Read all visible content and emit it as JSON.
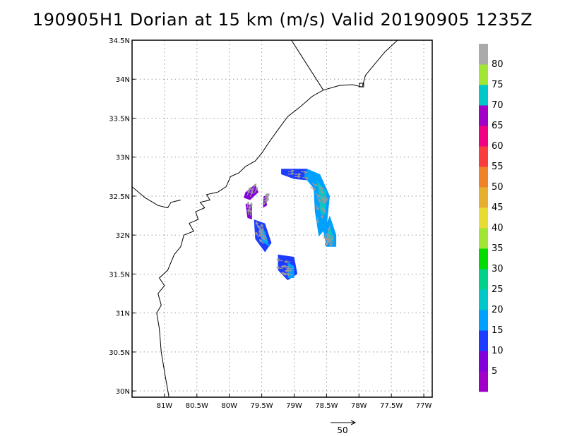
{
  "title": "190905H1 Dorian at 15 km (m/s) Valid 20190905 1235Z",
  "map": {
    "lon_range": [
      -81.5,
      -76.87
    ],
    "lat_range": [
      29.92,
      34.5
    ],
    "lon_ticks": [
      {
        "value": -81.0,
        "label": "81W"
      },
      {
        "value": -80.5,
        "label": "80.5W"
      },
      {
        "value": -80.0,
        "label": "80W"
      },
      {
        "value": -79.5,
        "label": "79.5W"
      },
      {
        "value": -79.0,
        "label": "79W"
      },
      {
        "value": -78.5,
        "label": "78.5W"
      },
      {
        "value": -78.0,
        "label": "78W"
      },
      {
        "value": -77.5,
        "label": "77.5W"
      },
      {
        "value": -77.0,
        "label": "77W"
      }
    ],
    "lat_ticks": [
      {
        "value": 30.0,
        "label": "30N"
      },
      {
        "value": 30.5,
        "label": "30.5N"
      },
      {
        "value": 31.0,
        "label": "31N"
      },
      {
        "value": 31.5,
        "label": "31.5N"
      },
      {
        "value": 32.0,
        "label": "32N"
      },
      {
        "value": 32.5,
        "label": "32.5N"
      },
      {
        "value": 33.0,
        "label": "33N"
      },
      {
        "value": 33.5,
        "label": "33.5N"
      },
      {
        "value": 34.0,
        "label": "34N"
      },
      {
        "value": 34.5,
        "label": "34.5N"
      }
    ],
    "grid": true,
    "coastline": [
      [
        -80.93,
        29.92
      ],
      [
        -80.99,
        30.2
      ],
      [
        -81.05,
        30.5
      ],
      [
        -81.08,
        30.8
      ],
      [
        -81.12,
        31.0
      ],
      [
        -81.05,
        31.1
      ],
      [
        -81.1,
        31.25
      ],
      [
        -81.0,
        31.35
      ],
      [
        -81.08,
        31.45
      ],
      [
        -80.95,
        31.55
      ],
      [
        -80.85,
        31.75
      ],
      [
        -80.75,
        31.85
      ],
      [
        -80.7,
        32.0
      ],
      [
        -80.55,
        32.05
      ],
      [
        -80.62,
        32.15
      ],
      [
        -80.48,
        32.2
      ],
      [
        -80.52,
        32.3
      ],
      [
        -80.38,
        32.35
      ],
      [
        -80.45,
        32.42
      ],
      [
        -80.3,
        32.45
      ],
      [
        -80.35,
        32.52
      ],
      [
        -80.18,
        32.55
      ],
      [
        -80.05,
        32.62
      ],
      [
        -79.98,
        32.75
      ],
      [
        -79.85,
        32.8
      ],
      [
        -79.75,
        32.88
      ],
      [
        -79.6,
        32.95
      ],
      [
        -79.5,
        33.05
      ],
      [
        -79.38,
        33.2
      ],
      [
        -79.25,
        33.35
      ],
      [
        -79.1,
        33.52
      ],
      [
        -78.9,
        33.65
      ],
      [
        -78.72,
        33.78
      ],
      [
        -78.55,
        33.86
      ],
      [
        -78.3,
        33.92
      ],
      [
        -78.1,
        33.93
      ],
      [
        -77.95,
        33.9
      ],
      [
        -77.9,
        34.05
      ],
      [
        -77.75,
        34.2
      ],
      [
        -77.6,
        34.35
      ],
      [
        -77.38,
        34.52
      ]
    ],
    "inland_lines": [
      [
        [
          -79.08,
          34.55
        ],
        [
          -78.55,
          33.86
        ]
      ],
      [
        [
          -81.5,
          32.62
        ],
        [
          -81.3,
          32.48
        ],
        [
          -81.1,
          32.38
        ],
        [
          -80.95,
          32.35
        ],
        [
          -80.9,
          32.42
        ],
        [
          -80.75,
          32.45
        ]
      ]
    ],
    "wind_patches": [
      {
        "value": 5,
        "points": [
          [
            -79.75,
            32.55
          ],
          [
            -79.6,
            32.65
          ],
          [
            -79.55,
            32.55
          ],
          [
            -79.68,
            32.45
          ],
          [
            -79.78,
            32.48
          ]
        ]
      },
      {
        "value": 5,
        "points": [
          [
            -79.47,
            32.5
          ],
          [
            -79.42,
            32.5
          ],
          [
            -79.42,
            32.38
          ],
          [
            -79.48,
            32.35
          ]
        ]
      },
      {
        "value": 5,
        "points": [
          [
            -79.75,
            32.4
          ],
          [
            -79.65,
            32.38
          ],
          [
            -79.65,
            32.2
          ],
          [
            -79.72,
            32.22
          ]
        ]
      },
      {
        "value": 10,
        "points": [
          [
            -79.62,
            32.2
          ],
          [
            -79.45,
            32.15
          ],
          [
            -79.35,
            31.9
          ],
          [
            -79.45,
            31.78
          ],
          [
            -79.6,
            31.95
          ]
        ]
      },
      {
        "value": 15,
        "points": [
          [
            -79.55,
            32.12
          ],
          [
            -79.45,
            32.05
          ],
          [
            -79.38,
            31.85
          ],
          [
            -79.5,
            31.92
          ]
        ]
      },
      {
        "value": 10,
        "points": [
          [
            -79.25,
            31.75
          ],
          [
            -79.0,
            31.72
          ],
          [
            -78.95,
            31.5
          ],
          [
            -79.1,
            31.42
          ],
          [
            -79.25,
            31.55
          ]
        ]
      },
      {
        "value": 15,
        "points": [
          [
            -79.1,
            31.65
          ],
          [
            -79.0,
            31.6
          ],
          [
            -79.0,
            31.45
          ],
          [
            -79.1,
            31.45
          ]
        ]
      },
      {
        "value": 10,
        "points": [
          [
            -79.2,
            32.85
          ],
          [
            -78.8,
            32.85
          ],
          [
            -78.75,
            32.7
          ],
          [
            -79.0,
            32.72
          ],
          [
            -79.2,
            32.78
          ]
        ]
      },
      {
        "value": 15,
        "points": [
          [
            -78.8,
            32.85
          ],
          [
            -78.6,
            32.78
          ],
          [
            -78.45,
            32.5
          ],
          [
            -78.5,
            32.1
          ],
          [
            -78.62,
            31.98
          ],
          [
            -78.68,
            32.3
          ],
          [
            -78.7,
            32.6
          ],
          [
            -78.85,
            32.75
          ]
        ]
      },
      {
        "value": 20,
        "points": [
          [
            -78.65,
            32.7
          ],
          [
            -78.5,
            32.55
          ],
          [
            -78.52,
            32.25
          ],
          [
            -78.6,
            32.3
          ],
          [
            -78.62,
            32.55
          ]
        ]
      },
      {
        "value": 15,
        "points": [
          [
            -78.45,
            32.25
          ],
          [
            -78.35,
            32.0
          ],
          [
            -78.35,
            31.85
          ],
          [
            -78.5,
            31.85
          ],
          [
            -78.55,
            32.05
          ]
        ]
      },
      {
        "value": 20,
        "points": [
          [
            -78.45,
            32.1
          ],
          [
            -78.38,
            31.95
          ],
          [
            -78.45,
            31.9
          ],
          [
            -78.5,
            32.0
          ]
        ]
      }
    ],
    "wind_arrow_color": "#9a9a9a",
    "vector_scale_label": "50"
  },
  "colorbar": {
    "colors": [
      "#a000c8",
      "#8200dc",
      "#1e3cff",
      "#00a0ff",
      "#00c8c8",
      "#00d28c",
      "#00dc00",
      "#a0e632",
      "#e6dc32",
      "#e6af2d",
      "#f08228",
      "#fa3c3c",
      "#f00082",
      "#a000c8",
      "#00c8c8",
      "#a0e632",
      "#aaaaaa"
    ],
    "labels": [
      "5",
      "10",
      "15",
      "20",
      "25",
      "30",
      "35",
      "40",
      "45",
      "50",
      "55",
      "60",
      "65",
      "70",
      "75",
      "80"
    ]
  }
}
